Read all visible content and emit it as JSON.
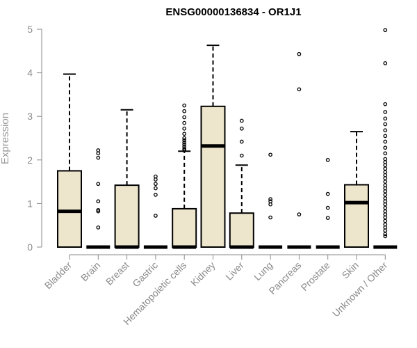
{
  "chart_data": {
    "type": "boxplot",
    "title": "ENSG00000136834 - OR1J1",
    "ylabel": "Expression",
    "xlabel": "",
    "ylim": [
      0,
      5
    ],
    "yticks": [
      "0",
      "1",
      "2",
      "3",
      "4",
      "5"
    ],
    "box_color": "#ede5cc",
    "categories": [
      "Bladder",
      "Brain",
      "Breast",
      "Gastric",
      "Hematopoietic cells",
      "Kidney",
      "Liver",
      "Lung",
      "Pancreas",
      "Prostate",
      "Skin",
      "Unknown / Other"
    ],
    "boxes": [
      {
        "category": "Bladder",
        "min": 0,
        "q1": 0,
        "median": 0.82,
        "q3": 1.75,
        "max": 3.97,
        "outliers": []
      },
      {
        "category": "Brain",
        "min": 0,
        "q1": 0,
        "median": 0,
        "q3": 0,
        "max": 0,
        "outliers": [
          0.45,
          0.82,
          0.85,
          1.05,
          1.45,
          2.05,
          2.15,
          2.22
        ]
      },
      {
        "category": "Breast",
        "min": 0,
        "q1": 0,
        "median": 0,
        "q3": 1.42,
        "max": 3.15,
        "outliers": []
      },
      {
        "category": "Gastric",
        "min": 0,
        "q1": 0,
        "median": 0,
        "q3": 0,
        "max": 0,
        "outliers": [
          0.72,
          1.2,
          1.35,
          1.45,
          1.55,
          1.62
        ]
      },
      {
        "category": "Hematopoietic cells",
        "min": 0,
        "q1": 0,
        "median": 0,
        "q3": 0.88,
        "max": 2.2,
        "outliers": [
          2.22,
          2.25,
          2.3,
          2.35,
          2.4,
          2.45,
          2.5,
          2.6,
          2.72,
          2.85,
          2.98,
          3.12,
          3.25
        ]
      },
      {
        "category": "Kidney",
        "min": 0,
        "q1": 0,
        "median": 2.32,
        "q3": 3.23,
        "max": 4.63,
        "outliers": []
      },
      {
        "category": "Liver",
        "min": 0,
        "q1": 0,
        "median": 0,
        "q3": 0.78,
        "max": 1.88,
        "outliers": [
          2.1,
          2.42,
          2.72,
          2.9
        ]
      },
      {
        "category": "Lung",
        "min": 0,
        "q1": 0,
        "median": 0,
        "q3": 0,
        "max": 0,
        "outliers": [
          0.68,
          0.98,
          1.05,
          1.1,
          2.12
        ]
      },
      {
        "category": "Pancreas",
        "min": 0,
        "q1": 0,
        "median": 0,
        "q3": 0,
        "max": 0,
        "outliers": [
          0.75,
          3.62,
          4.43
        ]
      },
      {
        "category": "Prostate",
        "min": 0,
        "q1": 0,
        "median": 0,
        "q3": 0,
        "max": 0,
        "outliers": [
          0.67,
          0.9,
          1.22,
          2.0
        ]
      },
      {
        "category": "Skin",
        "min": 0,
        "q1": 0,
        "median": 1.02,
        "q3": 1.43,
        "max": 2.65,
        "outliers": []
      },
      {
        "category": "Unknown / Other",
        "min": 0,
        "q1": 0,
        "median": 0,
        "q3": 0,
        "max": 0,
        "outliers": [
          0.25,
          0.3,
          0.38,
          0.45,
          0.52,
          0.6,
          0.68,
          0.75,
          0.82,
          0.9,
          0.98,
          1.05,
          1.12,
          1.2,
          1.28,
          1.35,
          1.42,
          1.5,
          1.58,
          1.65,
          1.72,
          1.8,
          1.88,
          1.95,
          2.02,
          2.15,
          2.28,
          2.42,
          2.55,
          2.68,
          2.82,
          2.95,
          3.1,
          3.28,
          4.22,
          4.98
        ]
      }
    ]
  }
}
